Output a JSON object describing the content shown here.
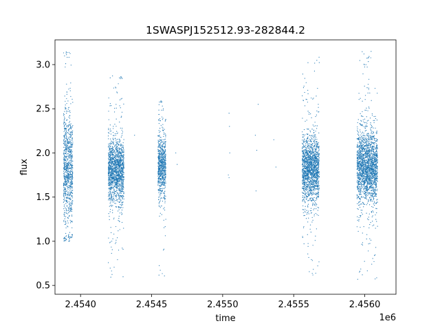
{
  "chart_data": {
    "type": "scatter",
    "title": "1SWASPJ152512.93-282844.2",
    "xlabel": "time",
    "ylabel": "flux",
    "x_offset_label": "1e6",
    "xlim": [
      2453820,
      2456220
    ],
    "ylim": [
      0.4,
      3.28
    ],
    "grid": false,
    "marker_color": "#1f77b4",
    "x_ticks": [
      2454000,
      2454500,
      2455000,
      2455500,
      2456000
    ],
    "x_tick_labels": [
      "2.4540",
      "2.4545",
      "2.4550",
      "2.4555",
      "2.4560"
    ],
    "y_ticks": [
      0.5,
      1.0,
      1.5,
      2.0,
      2.5,
      3.0
    ],
    "y_tick_labels": [
      "0.5",
      "1.0",
      "1.5",
      "2.0",
      "2.5",
      "3.0"
    ],
    "clusters": [
      {
        "x_range": [
          2453880,
          2453945
        ],
        "y_center": 1.85,
        "y_spread": 0.3,
        "y_min": 1.0,
        "y_max": 3.15
      },
      {
        "x_range": [
          2454195,
          2454305
        ],
        "y_center": 1.8,
        "y_spread": 0.18,
        "y_min": 0.55,
        "y_max": 2.9
      },
      {
        "x_range": [
          2454545,
          2454600
        ],
        "y_center": 1.85,
        "y_spread": 0.18,
        "y_min": 0.6,
        "y_max": 2.6
      },
      {
        "x_range": [
          2455560,
          2455680
        ],
        "y_center": 1.82,
        "y_spread": 0.18,
        "y_min": 0.6,
        "y_max": 3.12
      },
      {
        "x_range": [
          2455945,
          2456090
        ],
        "y_center": 1.85,
        "y_spread": 0.2,
        "y_min": 0.55,
        "y_max": 3.15
      }
    ],
    "sparse_points": [
      {
        "x": 2455045,
        "y": 2.45
      },
      {
        "x": 2455048,
        "y": 2.3
      },
      {
        "x": 2455040,
        "y": 1.75
      },
      {
        "x": 2455045,
        "y": 1.72
      },
      {
        "x": 2455050,
        "y": 2.0
      },
      {
        "x": 2455230,
        "y": 2.2
      },
      {
        "x": 2455240,
        "y": 2.03
      },
      {
        "x": 2455235,
        "y": 1.57
      },
      {
        "x": 2455250,
        "y": 2.55
      },
      {
        "x": 2455360,
        "y": 2.15
      },
      {
        "x": 2455375,
        "y": 1.84
      },
      {
        "x": 2454670,
        "y": 2.0
      },
      {
        "x": 2454680,
        "y": 1.87
      },
      {
        "x": 2454380,
        "y": 2.2
      }
    ]
  }
}
